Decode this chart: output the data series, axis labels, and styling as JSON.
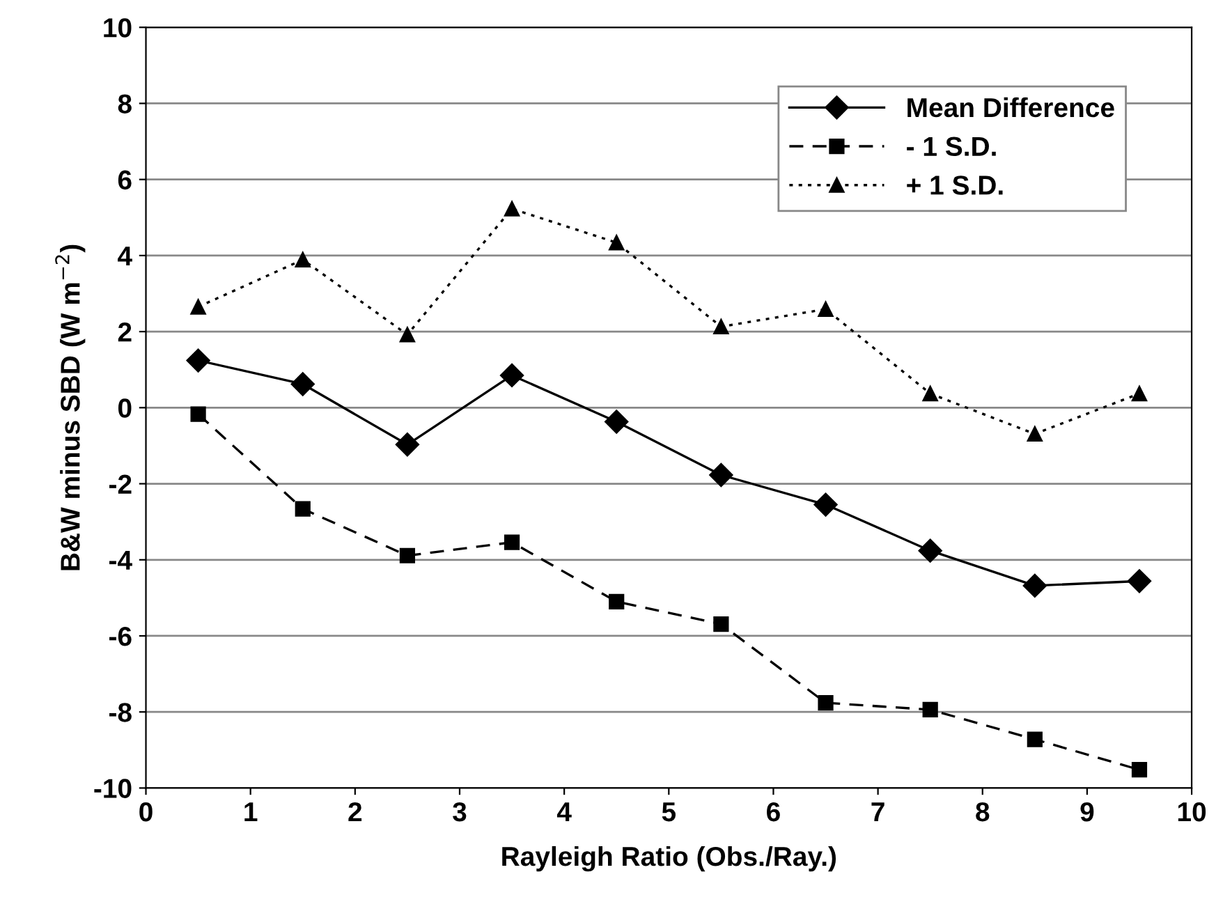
{
  "chart_data": {
    "type": "line",
    "xlabel": "Rayleigh Ratio (Obs./Ray.)",
    "ylabel": "B&W minus SBD (W m$^{−2}$)",
    "x": [
      0.5,
      1.5,
      2.5,
      3.5,
      4.5,
      5.5,
      6.5,
      7.5,
      8.5,
      9.5
    ],
    "series": [
      {
        "name": "Mean Difference",
        "color": "#000000",
        "marker": "diamond",
        "line_style": "solid",
        "values": [
          1.24,
          0.62,
          -0.97,
          0.85,
          -0.37,
          -1.77,
          -2.55,
          -3.76,
          -4.68,
          -4.56
        ]
      },
      {
        "name": "- 1 S.D.",
        "color": "#000000",
        "marker": "square",
        "line_style": "dashed",
        "values": [
          -0.17,
          -2.66,
          -3.89,
          -3.54,
          -5.1,
          -5.69,
          -7.76,
          -7.94,
          -8.72,
          -9.52
        ]
      },
      {
        "name": "+ 1 S.D.",
        "color": "#000000",
        "marker": "triangle",
        "line_style": "dotted",
        "values": [
          2.65,
          3.89,
          1.92,
          5.23,
          4.34,
          2.13,
          2.59,
          0.37,
          -0.69,
          0.37
        ]
      }
    ],
    "xlim": [
      0,
      10
    ],
    "xticks": [
      0,
      1,
      2,
      3,
      4,
      5,
      6,
      7,
      8,
      9,
      10
    ],
    "ylim": [
      -10,
      10
    ],
    "yticks": [
      -10,
      -8,
      -6,
      -4,
      -2,
      0,
      2,
      4,
      6,
      8,
      10
    ],
    "grid": "y",
    "legend": "top right"
  }
}
